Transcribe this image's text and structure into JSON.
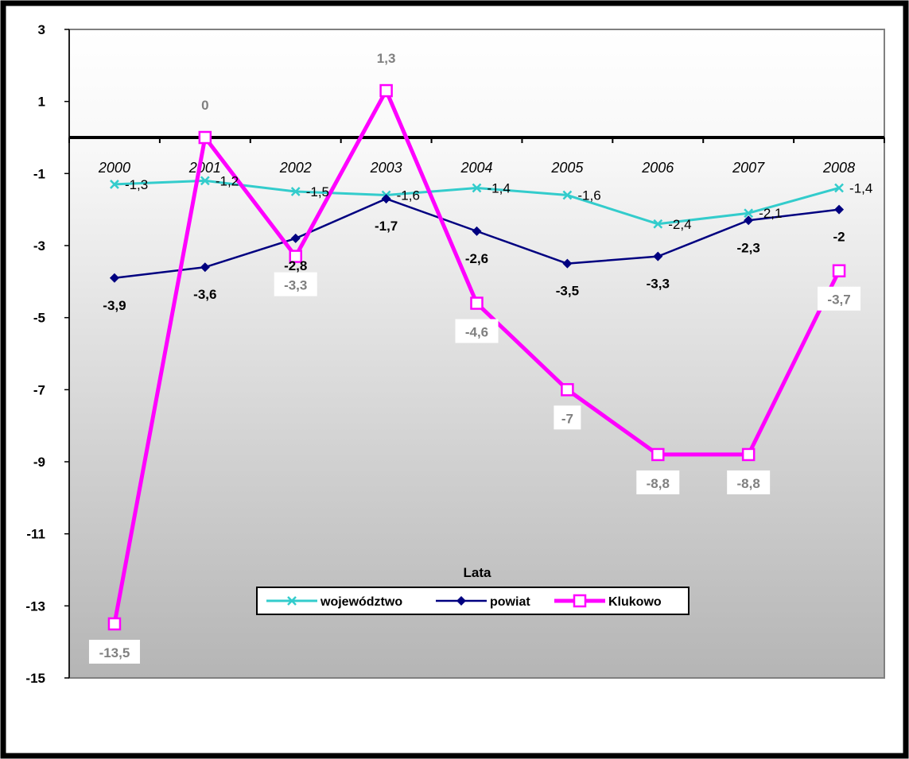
{
  "chart_data": {
    "type": "line",
    "categories": [
      "2000",
      "2001",
      "2002",
      "2003",
      "2004",
      "2005",
      "2006",
      "2007",
      "2008"
    ],
    "xlabel": "Lata",
    "ylabel": "",
    "ylim": [
      -15,
      3
    ],
    "yticks": [
      3,
      1,
      -1,
      -3,
      -5,
      -7,
      -9,
      -11,
      -13,
      -15
    ],
    "ytick_labels": [
      "3",
      "1",
      "-1",
      "-3",
      "-5",
      "-7",
      "-9",
      "-11",
      "-13",
      "-15"
    ],
    "grid": false,
    "legend_position": "bottom",
    "series": [
      {
        "name": "województwo",
        "values": [
          -1.3,
          -1.2,
          -1.5,
          -1.6,
          -1.4,
          -1.6,
          -2.4,
          -2.1,
          -1.4
        ],
        "labels": [
          "-1,3",
          "-1,2",
          "-1,5",
          "-1,6",
          "-1,4",
          "-1,6",
          "-2,4",
          "-2,1",
          "-1,4"
        ],
        "color": "#33cccc",
        "marker": "x"
      },
      {
        "name": "powiat",
        "values": [
          -3.9,
          -3.6,
          -2.8,
          -1.7,
          -2.6,
          -3.5,
          -3.3,
          -2.3,
          -2
        ],
        "labels": [
          "-3,9",
          "-3,6",
          "-2,8",
          "-1,7",
          "-2,6",
          "-3,5",
          "-3,3",
          "-2,3",
          "-2"
        ],
        "color": "#000080",
        "marker": "diamond"
      },
      {
        "name": "Klukowo",
        "values": [
          -13.5,
          0,
          -3.3,
          1.3,
          -4.6,
          -7,
          -8.8,
          -8.8,
          -3.7
        ],
        "labels": [
          "-13,5",
          "0",
          "-3,3",
          "1,3",
          "-4,6",
          "-7",
          "-8,8",
          "-8,8",
          "-3,7"
        ],
        "color": "#ff00ff",
        "marker": "square"
      }
    ]
  }
}
